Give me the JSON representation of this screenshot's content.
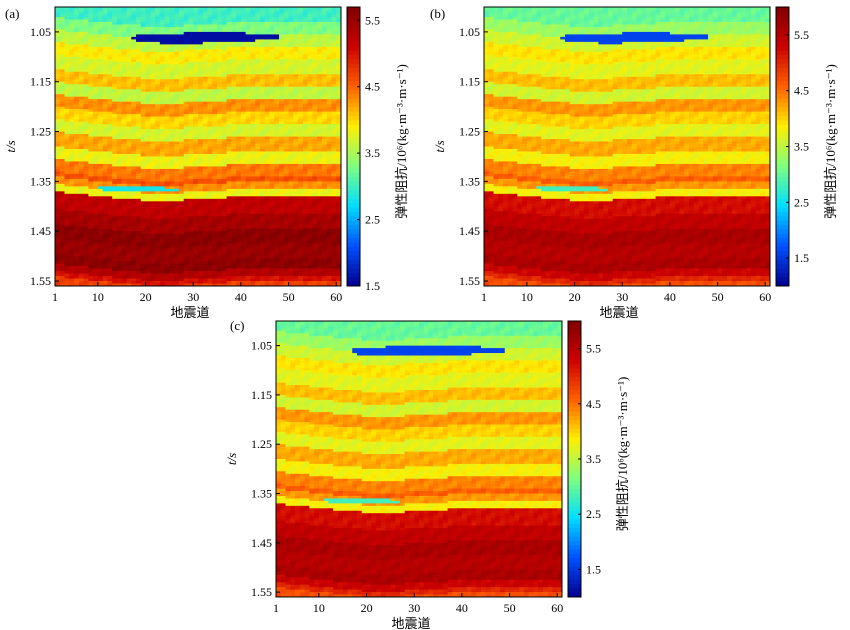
{
  "figure": {
    "colors": {
      "colormap": [
        "#00008f",
        "#0050ff",
        "#00ddff",
        "#7fff7f",
        "#ffee00",
        "#ff6000",
        "#cc0000",
        "#800000"
      ],
      "frame": "#000000"
    }
  },
  "chart_data": [
    {
      "type": "heatmap",
      "panel_label": "(a)",
      "xlabel": "地震道",
      "ylabel": "t/s",
      "colorbar_label": "弹性阻抗/10⁶(kg·m⁻³·m·s⁻¹)",
      "x_range": [
        1,
        61
      ],
      "y_range": [
        1.0,
        1.56
      ],
      "x_ticks": [
        "1",
        "10",
        "20",
        "30",
        "40",
        "50",
        "60"
      ],
      "y_ticks": [
        "1.05",
        "1.15",
        "1.25",
        "1.35",
        "1.45",
        "1.55"
      ],
      "color_range": [
        1.5,
        5.7
      ],
      "colorbar_ticks": [
        "1.5",
        "2.5",
        "3.5",
        "4.5",
        "5.5"
      ],
      "layers_t_at_trace30": [
        1.0,
        1.025,
        1.05,
        1.075,
        1.1,
        1.13,
        1.155,
        1.18,
        1.205,
        1.23,
        1.255,
        1.285,
        1.31,
        1.335,
        1.345,
        1.36,
        1.375,
        1.41,
        1.44,
        1.47,
        1.5,
        1.52,
        1.535,
        1.545,
        1.56
      ],
      "layer_impedance": [
        3.0,
        3.3,
        3.6,
        3.9,
        3.7,
        4.1,
        3.6,
        4.3,
        4.0,
        3.7,
        4.2,
        3.8,
        4.4,
        4.6,
        4.3,
        3.8,
        5.2,
        5.4,
        5.6,
        5.5,
        5.6,
        5.3,
        5.0,
        4.7,
        5.5
      ],
      "low_impedance_bodies": [
        {
          "trace_range": [
            17,
            48
          ],
          "t_center": 1.059,
          "thickness": 0.018,
          "impedance": 1.6
        },
        {
          "trace_range": [
            10,
            27
          ],
          "t_center": 1.362,
          "thickness": 0.007,
          "impedance": 2.8
        }
      ]
    },
    {
      "type": "heatmap",
      "panel_label": "(b)",
      "xlabel": "地震道",
      "ylabel": "t/s",
      "colorbar_label": "弹性阻抗/10⁶(kg·m⁻³·m·s⁻¹)",
      "x_range": [
        1,
        61
      ],
      "y_range": [
        1.0,
        1.56
      ],
      "x_ticks": [
        "1",
        "10",
        "20",
        "30",
        "40",
        "50",
        "60"
      ],
      "y_ticks": [
        "1.05",
        "1.15",
        "1.25",
        "1.35",
        "1.45",
        "1.55"
      ],
      "color_range": [
        1.0,
        6.0
      ],
      "colorbar_ticks": [
        "1.5",
        "2.5",
        "3.5",
        "4.5",
        "5.5"
      ],
      "layers_t_at_trace30": [
        1.0,
        1.025,
        1.05,
        1.075,
        1.1,
        1.13,
        1.155,
        1.18,
        1.205,
        1.23,
        1.255,
        1.285,
        1.31,
        1.335,
        1.345,
        1.36,
        1.375,
        1.41,
        1.44,
        1.47,
        1.5,
        1.52,
        1.535,
        1.545,
        1.56
      ],
      "layer_impedance": [
        3.0,
        3.3,
        3.6,
        3.9,
        3.7,
        4.1,
        3.6,
        4.3,
        4.0,
        3.7,
        4.2,
        3.8,
        4.4,
        4.6,
        4.3,
        3.8,
        5.2,
        5.4,
        5.6,
        5.5,
        5.6,
        5.3,
        5.0,
        4.7,
        5.5
      ],
      "low_impedance_bodies": [
        {
          "trace_range": [
            17,
            48
          ],
          "t_center": 1.059,
          "thickness": 0.017,
          "impedance": 1.6
        },
        {
          "trace_range": [
            12,
            27
          ],
          "t_center": 1.362,
          "thickness": 0.007,
          "impedance": 2.8
        }
      ]
    },
    {
      "type": "heatmap",
      "panel_label": "(c)",
      "xlabel": "地震道",
      "ylabel": "t/s",
      "colorbar_label": "弹性阻抗/10⁶(kg·m⁻³·m·s⁻¹)",
      "x_range": [
        1,
        61
      ],
      "y_range": [
        1.0,
        1.56
      ],
      "x_ticks": [
        "1",
        "10",
        "20",
        "30",
        "40",
        "50",
        "60"
      ],
      "y_ticks": [
        "1.05",
        "1.15",
        "1.25",
        "1.35",
        "1.45",
        "1.55"
      ],
      "color_range": [
        1.0,
        6.0
      ],
      "colorbar_ticks": [
        "1.5",
        "2.5",
        "3.5",
        "4.5",
        "5.5"
      ],
      "layers_t_at_trace30": [
        1.0,
        1.025,
        1.05,
        1.075,
        1.1,
        1.13,
        1.155,
        1.18,
        1.205,
        1.23,
        1.255,
        1.285,
        1.31,
        1.335,
        1.345,
        1.36,
        1.375,
        1.41,
        1.44,
        1.47,
        1.5,
        1.52,
        1.535,
        1.545,
        1.56
      ],
      "layer_impedance": [
        3.0,
        3.3,
        3.6,
        3.9,
        3.7,
        4.1,
        3.6,
        4.3,
        4.0,
        3.7,
        4.2,
        3.8,
        4.4,
        4.6,
        4.3,
        3.8,
        5.2,
        5.4,
        5.6,
        5.5,
        5.6,
        5.3,
        5.0,
        4.7,
        5.5
      ],
      "low_impedance_bodies": [
        {
          "trace_range": [
            17,
            49
          ],
          "t_center": 1.058,
          "thickness": 0.018,
          "impedance": 1.6
        },
        {
          "trace_range": [
            11,
            27
          ],
          "t_center": 1.362,
          "thickness": 0.007,
          "impedance": 2.8
        }
      ]
    }
  ]
}
